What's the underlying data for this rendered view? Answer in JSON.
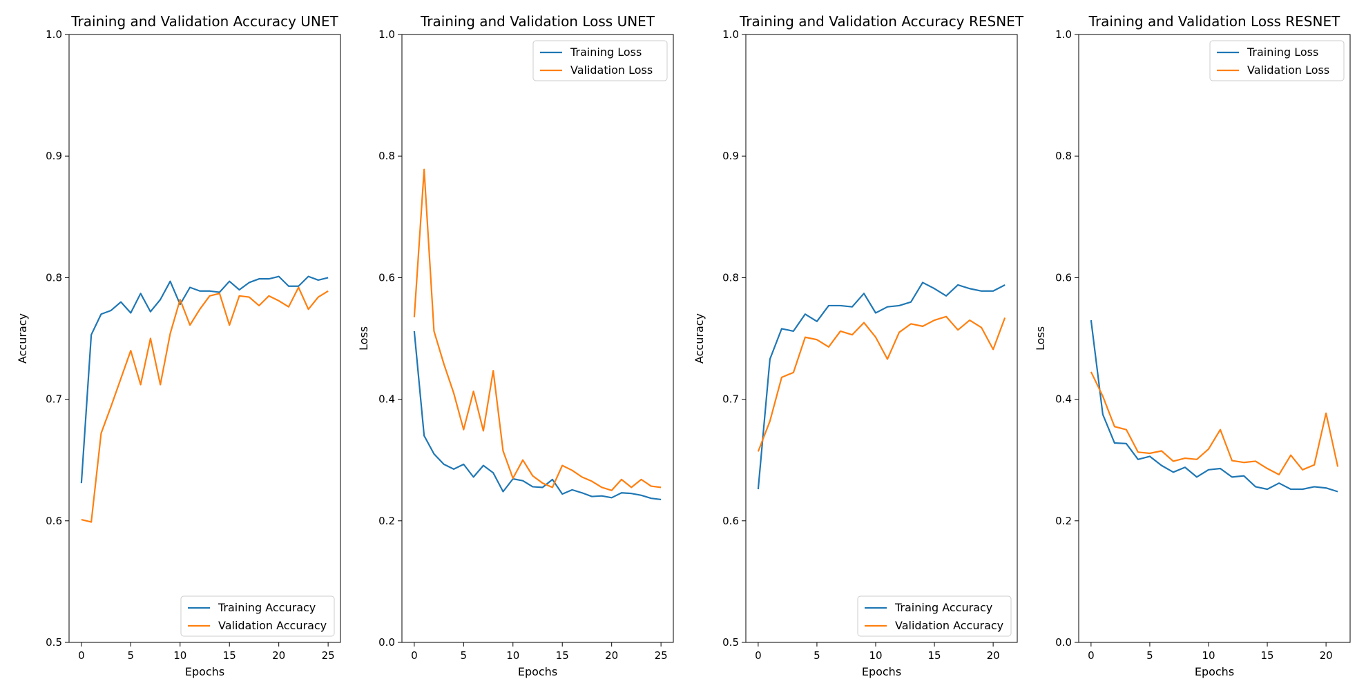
{
  "colors": {
    "training": "#1f77b4",
    "validation": "#ff7f0e"
  },
  "chart_data": [
    {
      "type": "line",
      "title": "Training and Validation Accuracy UNET",
      "xlabel": "Epochs",
      "ylabel": "Accuracy",
      "xlim": [
        -1.25,
        26.25
      ],
      "ylim": [
        0.5,
        1.0
      ],
      "xticks": [
        0,
        5,
        10,
        15,
        20,
        25
      ],
      "yticks": [
        0.5,
        0.6,
        0.7,
        0.8,
        0.9,
        1.0
      ],
      "legend": "lower-right",
      "grid": false,
      "series": [
        {
          "name": "Training Accuracy",
          "color": "training",
          "x": [
            0,
            1,
            2,
            3,
            4,
            5,
            6,
            7,
            8,
            9,
            10,
            11,
            12,
            13,
            14,
            15,
            16,
            17,
            18,
            19,
            20,
            21,
            22,
            23,
            24,
            25
          ],
          "y": [
            0.631,
            0.753,
            0.77,
            0.773,
            0.78,
            0.771,
            0.787,
            0.772,
            0.782,
            0.797,
            0.778,
            0.792,
            0.789,
            0.789,
            0.788,
            0.797,
            0.79,
            0.796,
            0.799,
            0.799,
            0.801,
            0.793,
            0.793,
            0.801,
            0.798,
            0.8
          ]
        },
        {
          "name": "Validation Accuracy",
          "color": "validation",
          "x": [
            0,
            1,
            2,
            3,
            4,
            5,
            6,
            7,
            8,
            9,
            10,
            11,
            12,
            13,
            14,
            15,
            16,
            17,
            18,
            19,
            20,
            21,
            22,
            23,
            24,
            25
          ],
          "y": [
            0.601,
            0.599,
            0.672,
            0.694,
            0.717,
            0.74,
            0.712,
            0.75,
            0.712,
            0.754,
            0.782,
            0.761,
            0.774,
            0.785,
            0.787,
            0.761,
            0.785,
            0.784,
            0.777,
            0.785,
            0.781,
            0.776,
            0.792,
            0.774,
            0.784,
            0.789
          ]
        }
      ]
    },
    {
      "type": "line",
      "title": "Training and Validation Loss UNET",
      "xlabel": "Epochs",
      "ylabel": "Loss",
      "xlim": [
        -1.25,
        26.25
      ],
      "ylim": [
        0.0,
        1.0
      ],
      "xticks": [
        0,
        5,
        10,
        15,
        20,
        25
      ],
      "yticks": [
        0.0,
        0.2,
        0.4,
        0.6,
        0.8,
        1.0
      ],
      "legend": "upper-right",
      "grid": false,
      "series": [
        {
          "name": "Training Loss",
          "color": "training",
          "x": [
            0,
            1,
            2,
            3,
            4,
            5,
            6,
            7,
            8,
            9,
            10,
            11,
            12,
            13,
            14,
            15,
            16,
            17,
            18,
            19,
            20,
            21,
            22,
            23,
            24,
            25
          ],
          "y": [
            0.512,
            0.34,
            0.31,
            0.293,
            0.285,
            0.293,
            0.272,
            0.291,
            0.279,
            0.248,
            0.269,
            0.266,
            0.256,
            0.255,
            0.268,
            0.244,
            0.251,
            0.246,
            0.24,
            0.241,
            0.238,
            0.246,
            0.245,
            0.242,
            0.237,
            0.235
          ]
        },
        {
          "name": "Validation Loss",
          "color": "validation",
          "x": [
            0,
            1,
            2,
            3,
            4,
            5,
            6,
            7,
            8,
            9,
            10,
            11,
            12,
            13,
            14,
            15,
            16,
            17,
            18,
            19,
            20,
            21,
            22,
            23,
            24,
            25
          ],
          "y": [
            0.535,
            0.778,
            0.512,
            0.458,
            0.41,
            0.35,
            0.413,
            0.348,
            0.447,
            0.315,
            0.27,
            0.3,
            0.274,
            0.262,
            0.255,
            0.291,
            0.283,
            0.272,
            0.265,
            0.255,
            0.25,
            0.268,
            0.255,
            0.268,
            0.257,
            0.255
          ]
        }
      ]
    },
    {
      "type": "line",
      "title": "Training and Validation Accuracy RESNET",
      "xlabel": "Epochs",
      "ylabel": "Accuracy",
      "xlim": [
        -1.05,
        22.05
      ],
      "ylim": [
        0.5,
        1.0
      ],
      "xticks": [
        0,
        5,
        10,
        15,
        20
      ],
      "yticks": [
        0.5,
        0.6,
        0.7,
        0.8,
        0.9,
        1.0
      ],
      "legend": "lower-right",
      "grid": false,
      "series": [
        {
          "name": "Training Accuracy",
          "color": "training",
          "x": [
            0,
            1,
            2,
            3,
            4,
            5,
            6,
            7,
            8,
            9,
            10,
            11,
            12,
            13,
            14,
            15,
            16,
            17,
            18,
            19,
            20,
            21
          ],
          "y": [
            0.626,
            0.733,
            0.758,
            0.756,
            0.77,
            0.764,
            0.777,
            0.777,
            0.776,
            0.787,
            0.771,
            0.776,
            0.777,
            0.78,
            0.796,
            0.791,
            0.785,
            0.794,
            0.791,
            0.789,
            0.789,
            0.794
          ]
        },
        {
          "name": "Validation Accuracy",
          "color": "validation",
          "x": [
            0,
            1,
            2,
            3,
            4,
            5,
            6,
            7,
            8,
            9,
            10,
            11,
            12,
            13,
            14,
            15,
            16,
            17,
            18,
            19,
            20,
            21
          ],
          "y": [
            0.657,
            0.682,
            0.718,
            0.722,
            0.751,
            0.749,
            0.743,
            0.756,
            0.753,
            0.763,
            0.751,
            0.733,
            0.755,
            0.762,
            0.76,
            0.765,
            0.768,
            0.757,
            0.765,
            0.759,
            0.741,
            0.767
          ]
        }
      ]
    },
    {
      "type": "line",
      "title": "Training and Validation Loss RESNET",
      "xlabel": "Epochs",
      "ylabel": "Loss",
      "xlim": [
        -1.05,
        22.05
      ],
      "ylim": [
        0.0,
        1.0
      ],
      "xticks": [
        0,
        5,
        10,
        15,
        20
      ],
      "yticks": [
        0.0,
        0.2,
        0.4,
        0.6,
        0.8,
        1.0
      ],
      "legend": "upper-right",
      "grid": false,
      "series": [
        {
          "name": "Training Loss",
          "color": "training",
          "x": [
            0,
            1,
            2,
            3,
            4,
            5,
            6,
            7,
            8,
            9,
            10,
            11,
            12,
            13,
            14,
            15,
            16,
            17,
            18,
            19,
            20,
            21
          ],
          "y": [
            0.53,
            0.375,
            0.328,
            0.327,
            0.301,
            0.306,
            0.291,
            0.28,
            0.288,
            0.272,
            0.284,
            0.286,
            0.272,
            0.274,
            0.256,
            0.252,
            0.262,
            0.252,
            0.252,
            0.256,
            0.254,
            0.248
          ]
        },
        {
          "name": "Validation Loss",
          "color": "validation",
          "x": [
            0,
            1,
            2,
            3,
            4,
            5,
            6,
            7,
            8,
            9,
            10,
            11,
            12,
            13,
            14,
            15,
            16,
            17,
            18,
            19,
            20,
            21
          ],
          "y": [
            0.445,
            0.405,
            0.355,
            0.35,
            0.313,
            0.311,
            0.315,
            0.298,
            0.303,
            0.301,
            0.318,
            0.35,
            0.299,
            0.296,
            0.298,
            0.286,
            0.276,
            0.308,
            0.284,
            0.292,
            0.377,
            0.289
          ]
        }
      ]
    }
  ]
}
